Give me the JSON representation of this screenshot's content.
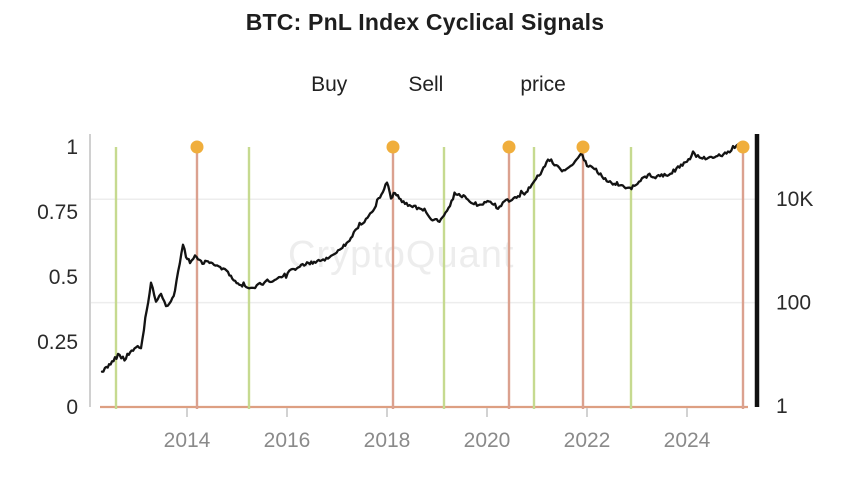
{
  "title": "BTC: PnL Index Cyclical Signals",
  "watermark": "CryptoQuant",
  "legend": {
    "buy_label": "Buy",
    "sell_label": "Sell",
    "price_label": "price"
  },
  "colors": {
    "buy": "#c6da90",
    "sell": "#dba18f",
    "signal_dot": "#f0ae3c",
    "price": "#131313",
    "baseline": "#dd9f82",
    "left_axis": "#d0d0d0",
    "right_axis": "#101010",
    "gridline": "#ededed",
    "tick": "#d2d2d2",
    "x_label": "#8a8a8a",
    "axis_label": "#2b2b2b"
  },
  "chart_data": {
    "type": "line",
    "title": "BTC: PnL Index Cyclical Signals",
    "series_name": "price",
    "x_axis": {
      "tick_years": [
        2014,
        2016,
        2018,
        2020,
        2022,
        2024
      ],
      "range": [
        2012.3,
        2025.3
      ]
    },
    "left_axis": {
      "tick_values": [
        0,
        0.25,
        0.5,
        0.75,
        1
      ],
      "tick_labels": [
        "0",
        "0.25",
        "0.5",
        "0.75",
        "1"
      ],
      "range": [
        0,
        1
      ]
    },
    "right_axis": {
      "scale": "log",
      "tick_values": [
        1,
        100,
        10000
      ],
      "tick_labels": [
        "1",
        "100",
        "10K"
      ],
      "gridline_values": [
        100,
        10000
      ]
    },
    "buy_signal_years": [
      2012.58,
      2015.24,
      2019.14,
      2020.94,
      2022.88
    ],
    "sell_signal_years": [
      2014.2,
      2018.12,
      2020.44,
      2021.92,
      2025.12
    ],
    "price_series": [
      [
        2012.3,
        4.6
      ],
      [
        2012.5,
        7
      ],
      [
        2012.62,
        9.5
      ],
      [
        2012.75,
        8
      ],
      [
        2012.95,
        13
      ],
      [
        2013.08,
        14
      ],
      [
        2013.28,
        235
      ],
      [
        2013.38,
        112
      ],
      [
        2013.48,
        150
      ],
      [
        2013.58,
        88
      ],
      [
        2013.68,
        100
      ],
      [
        2013.76,
        170
      ],
      [
        2013.92,
        1350
      ],
      [
        2013.98,
        800
      ],
      [
        2014.06,
        600
      ],
      [
        2014.16,
        830
      ],
      [
        2014.28,
        600
      ],
      [
        2014.42,
        620
      ],
      [
        2014.6,
        510
      ],
      [
        2014.82,
        385
      ],
      [
        2015.02,
        225
      ],
      [
        2015.16,
        210
      ],
      [
        2015.3,
        192
      ],
      [
        2015.55,
        245
      ],
      [
        2015.75,
        270
      ],
      [
        2015.92,
        320
      ],
      [
        2016.14,
        450
      ],
      [
        2016.4,
        560
      ],
      [
        2016.6,
        640
      ],
      [
        2016.85,
        740
      ],
      [
        2017.05,
        1050
      ],
      [
        2017.25,
        1600
      ],
      [
        2017.42,
        2900
      ],
      [
        2017.58,
        4100
      ],
      [
        2017.72,
        6000
      ],
      [
        2017.86,
        11500
      ],
      [
        2018.0,
        21000
      ],
      [
        2018.08,
        10800
      ],
      [
        2018.16,
        13500
      ],
      [
        2018.3,
        8800
      ],
      [
        2018.45,
        7400
      ],
      [
        2018.6,
        6900
      ],
      [
        2018.75,
        6400
      ],
      [
        2018.88,
        3800
      ],
      [
        2019.05,
        3900
      ],
      [
        2019.2,
        5500
      ],
      [
        2019.35,
        12500
      ],
      [
        2019.5,
        11500
      ],
      [
        2019.65,
        9500
      ],
      [
        2019.8,
        8000
      ],
      [
        2019.95,
        8500
      ],
      [
        2020.1,
        8800
      ],
      [
        2020.22,
        6600
      ],
      [
        2020.35,
        9200
      ],
      [
        2020.5,
        9500
      ],
      [
        2020.62,
        11500
      ],
      [
        2020.78,
        13500
      ],
      [
        2020.95,
        23000
      ],
      [
        2021.1,
        35000
      ],
      [
        2021.22,
        62000
      ],
      [
        2021.35,
        50000
      ],
      [
        2021.5,
        34000
      ],
      [
        2021.62,
        40000
      ],
      [
        2021.76,
        55000
      ],
      [
        2021.88,
        75000
      ],
      [
        2022.0,
        45000
      ],
      [
        2022.15,
        40000
      ],
      [
        2022.3,
        28000
      ],
      [
        2022.46,
        21000
      ],
      [
        2022.6,
        20000
      ],
      [
        2022.8,
        16800
      ],
      [
        2022.95,
        17000
      ],
      [
        2023.1,
        25000
      ],
      [
        2023.25,
        29000
      ],
      [
        2023.4,
        27000
      ],
      [
        2023.55,
        29000
      ],
      [
        2023.7,
        33000
      ],
      [
        2023.85,
        42000
      ],
      [
        2024.0,
        52000
      ],
      [
        2024.12,
        78000
      ],
      [
        2024.25,
        64000
      ],
      [
        2024.4,
        60000
      ],
      [
        2024.55,
        65000
      ],
      [
        2024.7,
        72000
      ],
      [
        2024.82,
        80000
      ],
      [
        2024.92,
        100000
      ],
      [
        2025.02,
        112000
      ],
      [
        2025.08,
        118000
      ],
      [
        2025.12,
        108000
      ]
    ]
  }
}
